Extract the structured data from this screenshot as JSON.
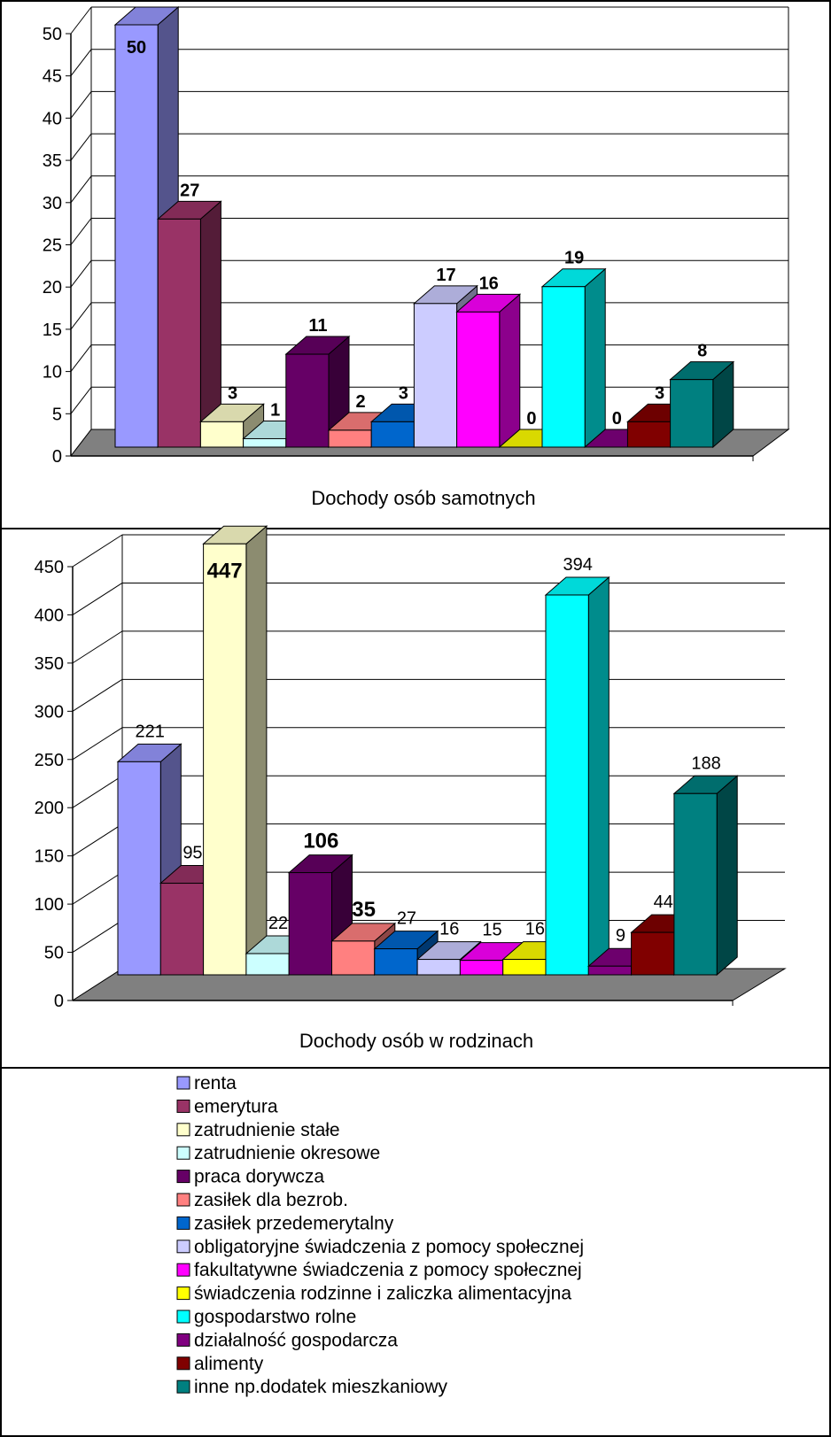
{
  "chart_data": [
    {
      "type": "bar",
      "xlabel": "Dochody osób samotnych",
      "ylim": [
        0,
        50
      ],
      "yticks": [
        0,
        5,
        10,
        15,
        20,
        25,
        30,
        35,
        40,
        45,
        50
      ],
      "values": [
        50,
        27,
        3,
        1,
        11,
        2,
        3,
        17,
        16,
        0,
        19,
        0,
        3,
        8
      ],
      "data_labels": [
        "50",
        "27",
        "3",
        "1",
        "11",
        "2",
        "3",
        "17",
        "16",
        "0",
        "19",
        "0",
        "3",
        "8"
      ],
      "grid": true,
      "three_d": true
    },
    {
      "type": "bar",
      "xlabel": "Dochody osób w rodzinach",
      "ylim": [
        0,
        450
      ],
      "yticks": [
        0,
        50,
        100,
        150,
        200,
        250,
        300,
        350,
        400,
        450
      ],
      "values": [
        221,
        95,
        447,
        22,
        106,
        35,
        27,
        16,
        15,
        16,
        394,
        9,
        44,
        188
      ],
      "data_labels": [
        "221",
        "95",
        "447",
        "22",
        "106",
        "35",
        "27",
        "16",
        "15",
        "16",
        "394",
        "9",
        "44",
        "188"
      ],
      "grid": true,
      "three_d": true
    }
  ],
  "legend": {
    "placement": "bottom",
    "items": [
      {
        "label": "renta",
        "color": "#9999FF"
      },
      {
        "label": "emerytura",
        "color": "#993366"
      },
      {
        "label": "zatrudnienie stałe",
        "color": "#FFFFCC"
      },
      {
        "label": "zatrudnienie okresowe",
        "color": "#CCFFFF"
      },
      {
        "label": "praca dorywcza",
        "color": "#660066"
      },
      {
        "label": "zasiłek dla bezrob.",
        "color": "#FF8080"
      },
      {
        "label": "zasiłek przedemerytalny",
        "color": "#0066CC"
      },
      {
        "label": "obligatoryjne świadczenia z pomocy społecznej",
        "color": "#CCCCFF"
      },
      {
        "label": "fakultatywne świadczenia z pomocy społecznej",
        "color": "#FF00FF"
      },
      {
        "label": "świadczenia rodzinne i zaliczka alimentacyjna",
        "color": "#FFFF00"
      },
      {
        "label": "gospodarstwo rolne",
        "color": "#00FFFF"
      },
      {
        "label": "działalność gospodarcza",
        "color": "#800080"
      },
      {
        "label": "alimenty",
        "color": "#800000"
      },
      {
        "label": "inne np.dodatek mieszkaniowy",
        "color": "#008080"
      }
    ]
  }
}
